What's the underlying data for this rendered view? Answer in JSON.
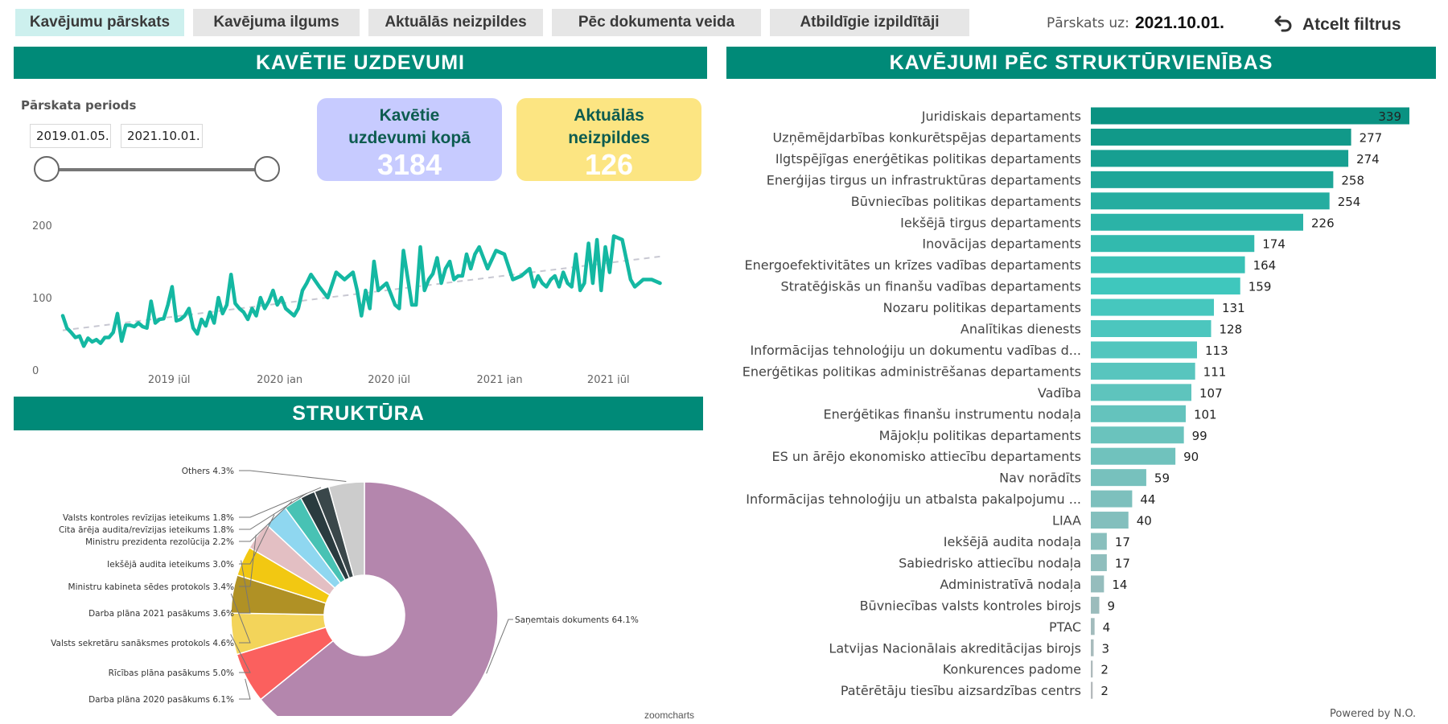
{
  "tabs": [
    {
      "label": "Kavējumu pārskats",
      "active": true
    },
    {
      "label": "Kavējuma ilgums",
      "active": false
    },
    {
      "label": "Aktuālās neizpildes",
      "active": false
    },
    {
      "label": "Pēc dokumenta veida",
      "active": false
    },
    {
      "label": "Atbildīgie izpildītāji",
      "active": false
    }
  ],
  "header": {
    "as_of_label": "Pārskats uz:",
    "as_of_date": "2021.10.01.",
    "clear_filters": "Atcelt filtrus",
    "clear_icon": "undo-arrow-icon"
  },
  "sections": {
    "overdue_tasks": "KAVĒTIE UZDEVUMI",
    "by_department": "KAVĒJUMI PĒC STRUKTŪRVIENĪBAS",
    "structure": "STRUKTŪRA"
  },
  "period": {
    "label": "Pārskata periods",
    "from": "2019.01.05.",
    "to": "2021.10.01."
  },
  "kpis": {
    "total_title_1": "Kavētie",
    "total_title_2": "uzdevumi kopā",
    "total_value": "3184",
    "open_title_1": "Aktuālās",
    "open_title_2": "neizpildes",
    "open_value": "126"
  },
  "credits": {
    "zoomcharts": "zoomcharts",
    "powered": "Powered by N.O."
  },
  "colors": {
    "band": "#008a78",
    "tab_active": "#cdf0ee",
    "kpi_total_bg": "#c7cbff",
    "kpi_open_bg": "#fce582",
    "line": "#14b8a2"
  },
  "chart_data": [
    {
      "type": "line",
      "yticks": [
        0,
        100,
        200
      ],
      "ylim": [
        0,
        200
      ],
      "xticks": [
        "2019 jūl",
        "2020 jan",
        "2020 jūl",
        "2021 jan",
        "2021 jūl"
      ],
      "trendline": true,
      "series": [
        {
          "x": [
            "2019-01-05",
            "2019-01-12",
            "2019-01-19",
            "2019-01-26",
            "2019-02-02",
            "2019-02-09",
            "2019-02-16",
            "2019-02-23",
            "2019-03-02",
            "2019-03-09",
            "2019-03-16",
            "2019-03-23",
            "2019-03-30",
            "2019-04-06",
            "2019-04-13",
            "2019-04-20",
            "2019-04-27",
            "2019-05-04",
            "2019-05-11",
            "2019-05-18",
            "2019-05-25",
            "2019-06-01",
            "2019-06-08",
            "2019-06-15",
            "2019-06-22",
            "2019-06-29",
            "2019-07-06",
            "2019-07-13",
            "2019-07-20",
            "2019-07-27",
            "2019-08-03",
            "2019-08-10",
            "2019-08-17",
            "2019-08-24",
            "2019-08-31",
            "2019-09-07",
            "2019-09-14",
            "2019-09-21",
            "2019-09-28",
            "2019-10-05",
            "2019-10-12",
            "2019-10-19",
            "2019-10-26",
            "2019-11-02",
            "2019-11-09",
            "2019-11-16",
            "2019-11-23",
            "2019-11-30",
            "2019-12-07",
            "2019-12-14",
            "2019-12-21",
            "2019-12-28",
            "2020-01-04",
            "2020-01-11",
            "2020-01-18",
            "2020-01-25",
            "2020-02-01",
            "2020-02-08",
            "2020-02-15",
            "2020-02-22",
            "2020-03-07",
            "2020-03-21",
            "2020-04-04",
            "2020-04-18",
            "2020-05-02",
            "2020-05-09",
            "2020-05-16",
            "2020-05-23",
            "2020-05-30",
            "2020-06-06",
            "2020-06-13",
            "2020-06-20",
            "2020-06-27",
            "2020-07-04",
            "2020-07-11",
            "2020-07-18",
            "2020-07-25",
            "2020-08-08",
            "2020-08-15",
            "2020-08-22",
            "2020-08-29",
            "2020-09-05",
            "2020-09-12",
            "2020-09-19",
            "2020-09-26",
            "2020-10-03",
            "2020-10-10",
            "2020-10-17",
            "2020-10-24",
            "2020-10-31",
            "2020-11-07",
            "2020-11-14",
            "2020-11-21",
            "2020-11-28",
            "2020-12-12",
            "2020-12-26",
            "2021-01-09",
            "2021-01-23",
            "2021-02-06",
            "2021-02-20",
            "2021-02-27",
            "2021-03-06",
            "2021-03-13",
            "2021-03-20",
            "2021-03-27",
            "2021-04-03",
            "2021-04-10",
            "2021-04-17",
            "2021-04-24",
            "2021-05-01",
            "2021-05-08",
            "2021-05-15",
            "2021-05-22",
            "2021-05-29",
            "2021-06-05",
            "2021-06-12",
            "2021-06-19",
            "2021-06-26",
            "2021-07-03",
            "2021-07-10",
            "2021-07-24",
            "2021-08-07",
            "2021-08-14",
            "2021-08-21",
            "2021-08-28",
            "2021-09-11",
            "2021-09-25"
          ],
          "y": [
            75,
            58,
            52,
            45,
            47,
            33,
            44,
            39,
            42,
            37,
            45,
            45,
            52,
            78,
            40,
            62,
            62,
            60,
            65,
            60,
            58,
            95,
            65,
            70,
            71,
            90,
            115,
            68,
            70,
            75,
            85,
            58,
            50,
            70,
            61,
            80,
            65,
            100,
            78,
            90,
            132,
            92,
            85,
            80,
            70,
            85,
            75,
            100,
            85,
            95,
            110,
            90,
            100,
            85,
            80,
            75,
            85,
            110,
            120,
            132,
            115,
            100,
            135,
            125,
            135,
            110,
            75,
            110,
            85,
            150,
            110,
            115,
            120,
            105,
            90,
            85,
            165,
            90,
            90,
            170,
            110,
            125,
            133,
            155,
            120,
            140,
            150,
            125,
            130,
            130,
            160,
            140,
            160,
            170,
            140,
            165,
            160,
            125,
            130,
            140,
            115,
            130,
            120,
            115,
            125,
            130,
            115,
            135,
            120,
            115,
            160,
            110,
            120,
            175,
            120,
            180,
            110,
            170,
            135,
            185,
            180,
            125,
            115,
            120,
            125,
            125,
            120
          ]
        }
      ]
    },
    {
      "type": "pie",
      "donut": true,
      "slices": [
        {
          "label": "Saņemtais dokuments 64.1%",
          "value": 64.1,
          "color": "#b486ad"
        },
        {
          "label": "Darba plāna 2020 pasākums 6.1%",
          "value": 6.1,
          "color": "#fb605e"
        },
        {
          "label": "Rīcības plāna pasākums 5.0%",
          "value": 5.0,
          "color": "#f3d45a"
        },
        {
          "label": "Valsts sekretāru sanāksmes protokols 4.6%",
          "value": 4.6,
          "color": "#b09125"
        },
        {
          "label": "Darba plāna 2021 pasākums 3.6%",
          "value": 3.6,
          "color": "#f2c812"
        },
        {
          "label": "Ministru kabineta sēdes protokols 3.4%",
          "value": 3.4,
          "color": "#e3bfc3"
        },
        {
          "label": "Iekšējā audita ieteikums 3.0%",
          "value": 3.0,
          "color": "#8fd7f0"
        },
        {
          "label": "Ministru prezidenta rezolūcija 2.2%",
          "value": 2.2,
          "color": "#48c2b4"
        },
        {
          "label": "Cita ārēja audita/revīzijas ieteikums 1.8%",
          "value": 1.8,
          "color": "#2a3b3f"
        },
        {
          "label": "Valsts kontroles revīzijas ieteikums 1.8%",
          "value": 1.8,
          "color": "#3a474a"
        },
        {
          "label": "Others 4.3%",
          "value": 4.3,
          "color": "#cccccc"
        }
      ]
    },
    {
      "type": "bar",
      "orientation": "horizontal",
      "categories": [
        "Juridiskais departaments",
        "Uzņēmējdarbības konkurētspējas departaments",
        "Ilgtspējīgas enerģētikas politikas departaments",
        "Enerģijas tirgus un infrastruktūras departaments",
        "Būvniecības politikas departaments",
        "Iekšējā tirgus departaments",
        "Inovācijas departaments",
        "Energoefektivitātes un krīzes vadības departaments",
        "Stratēģiskās un finanšu vadības departaments",
        "Nozaru politikas departaments",
        "Analītikas dienests",
        "Informācijas tehnoloģiju un dokumentu vadības d...",
        "Enerģētikas politikas administrēšanas departaments",
        "Vadība",
        "Enerģētikas finanšu instrumentu nodaļa",
        "Mājokļu politikas departaments",
        "ES un ārējo ekonomisko attiecību departaments",
        "Nav norādīts",
        "Informācijas tehnoloģiju un atbalsta pakalpojumu ...",
        "LIAA",
        "Iekšējā audita nodaļa",
        "Sabiedrisko attiecību nodaļa",
        "Administratīvā nodaļa",
        "Būvniecības valsts kontroles birojs",
        "PTAC",
        "Latvijas Nacionālais akreditācijas birojs",
        "Konkurences padome",
        "Patērētāju tiesību aizsardzības centrs"
      ],
      "values": [
        339,
        277,
        274,
        258,
        254,
        226,
        174,
        164,
        159,
        131,
        128,
        113,
        111,
        107,
        101,
        99,
        90,
        59,
        44,
        40,
        17,
        17,
        14,
        9,
        4,
        3,
        2,
        2
      ]
    }
  ]
}
